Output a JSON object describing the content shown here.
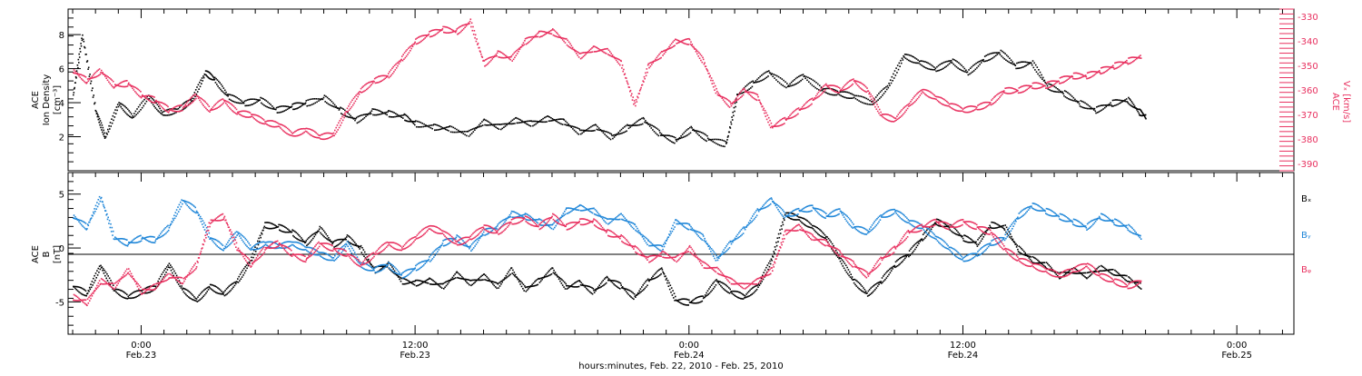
{
  "colors": {
    "black": "#000000",
    "red": "#e8305f",
    "blue": "#1f86d8"
  },
  "x_axis": {
    "ticks": [
      {
        "t": 0,
        "time": "0:00",
        "date": "Feb.23"
      },
      {
        "t": 12,
        "time": "12:00",
        "date": "Feb.23"
      },
      {
        "t": 24,
        "time": "0:00",
        "date": "Feb.24"
      },
      {
        "t": 36,
        "time": "12:00",
        "date": "Feb.24"
      },
      {
        "t": 48,
        "time": "0:00",
        "date": "Feb.25"
      }
    ],
    "label": "hours:minutes, Feb. 22, 2010 - Feb. 25, 2010"
  },
  "chart_data": [
    {
      "type": "scatter",
      "title": "",
      "ylabel_line1": "ACE",
      "ylabel_line2": "Ion Density",
      "ylabel_units": "[cm⁻³]",
      "y2label_line1": "ACE",
      "y2label_line2": "Vₓ [km/s]",
      "xlim_hours": [
        -3.2,
        50.5
      ],
      "ylim": [
        0,
        9.5
      ],
      "y2lim": [
        -393,
        -327
      ],
      "y_ticks": [
        2,
        4,
        6,
        8
      ],
      "y2_ticks": [
        -390,
        -380,
        -370,
        -360,
        -350,
        -340,
        -330
      ],
      "series": [
        {
          "color": "black",
          "points_x_hours": [
            -3.0,
            -2.6,
            -2.0,
            -1.6,
            -1.0,
            -0.4,
            0.3,
            0.9,
            1.6,
            2.2,
            2.8,
            3.2,
            3.8,
            4.5,
            5.2,
            5.9,
            6.6,
            7.2,
            8.0,
            8.7,
            9.4,
            10.1,
            10.8,
            11.5,
            12.0,
            12.8,
            13.5,
            14.3,
            15.0,
            15.7,
            16.4,
            17.1,
            17.8,
            18.5,
            19.2,
            19.9,
            20.6,
            21.3,
            22.0,
            22.7,
            23.4,
            24.1,
            24.8,
            25.6,
            26.1,
            26.8,
            27.5,
            28.3,
            29.0,
            29.8,
            30.5,
            31.2,
            32.0,
            32.7,
            33.4,
            34.1,
            34.8,
            35.5,
            36.2,
            36.9,
            37.6,
            38.3,
            39.0,
            39.7,
            40.4,
            41.1,
            41.8,
            42.5,
            43.2,
            43.7,
            44.0
          ],
          "points_y": [
            4.5,
            8.0,
            3.5,
            2.0,
            4.0,
            3.2,
            4.4,
            3.4,
            3.6,
            4.2,
            5.8,
            5.4,
            4.4,
            4.0,
            4.2,
            3.6,
            3.8,
            4.0,
            4.3,
            3.6,
            3.0,
            3.5,
            3.4,
            3.2,
            2.8,
            2.6,
            2.5,
            2.2,
            2.9,
            2.6,
            3.0,
            2.8,
            3.1,
            2.9,
            2.3,
            2.6,
            2.0,
            2.6,
            3.0,
            2.2,
            1.8,
            2.5,
            1.9,
            1.6,
            4.5,
            5.2,
            5.8,
            5.0,
            5.6,
            4.8,
            4.6,
            4.4,
            4.0,
            5.0,
            6.8,
            6.4,
            6.0,
            6.5,
            5.8,
            6.6,
            7.0,
            6.2,
            6.4,
            5.0,
            4.6,
            4.0,
            3.6,
            4.0,
            4.2,
            3.5,
            3.2
          ]
        },
        {
          "color": "red",
          "axis": "right",
          "points_x_hours": [
            -3.0,
            -2.4,
            -1.8,
            -1.2,
            -0.6,
            0.0,
            0.6,
            1.2,
            1.8,
            2.4,
            3.0,
            3.6,
            4.2,
            4.8,
            5.4,
            6.0,
            6.6,
            7.2,
            7.8,
            8.4,
            9.0,
            9.6,
            10.2,
            10.8,
            11.4,
            12.0,
            12.6,
            13.2,
            13.8,
            14.4,
            15.0,
            15.6,
            16.2,
            16.8,
            17.4,
            18.0,
            18.6,
            19.2,
            19.8,
            20.4,
            21.0,
            21.6,
            22.2,
            22.8,
            23.4,
            24.0,
            24.6,
            25.2,
            25.8,
            26.4,
            27.0,
            27.6,
            28.2,
            28.8,
            29.4,
            30.0,
            30.6,
            31.2,
            31.8,
            32.4,
            33.0,
            33.6,
            34.2,
            34.8,
            35.4,
            36.0,
            36.6,
            37.2,
            37.8,
            38.4,
            39.0,
            39.6,
            40.2,
            40.8,
            41.4,
            42.0,
            42.6,
            43.2,
            43.8
          ],
          "points_y": [
            -352,
            -356,
            -352,
            -358,
            -357,
            -362,
            -364,
            -368,
            -367,
            -362,
            -368,
            -364,
            -369,
            -370,
            -373,
            -374,
            -378,
            -376,
            -379,
            -378,
            -368,
            -360,
            -356,
            -354,
            -347,
            -340,
            -337,
            -335,
            -336,
            -332,
            -349,
            -345,
            -347,
            -340,
            -337,
            -336,
            -340,
            -346,
            -343,
            -344,
            -349,
            -366,
            -350,
            -345,
            -340,
            -340,
            -348,
            -361,
            -366,
            -360,
            -363,
            -375,
            -372,
            -368,
            -364,
            -358,
            -360,
            -356,
            -360,
            -370,
            -372,
            -366,
            -360,
            -363,
            -366,
            -368,
            -367,
            -365,
            -360,
            -360,
            -358,
            -358,
            -356,
            -354,
            -354,
            -352,
            -350,
            -348,
            -346
          ]
        }
      ]
    },
    {
      "type": "scatter",
      "title": "",
      "ylabel_line1": "ACE",
      "ylabel_line2": "B",
      "ylabel_units": "[nT]",
      "xlim_hours": [
        -3.2,
        50.5
      ],
      "ylim": [
        -8,
        7
      ],
      "y_ticks": [
        -5,
        0,
        5
      ],
      "series": [
        {
          "name": "Bₓ",
          "color": "black",
          "points_x_hours": [
            -3.0,
            -2.4,
            -1.8,
            -1.2,
            -0.6,
            0.0,
            0.6,
            1.2,
            1.8,
            2.4,
            3.0,
            3.6,
            4.2,
            4.8,
            5.4,
            6.0,
            6.6,
            7.2,
            7.8,
            8.4,
            9.0,
            9.6,
            10.2,
            10.8,
            11.4,
            12.0,
            12.6,
            13.2,
            13.8,
            14.4,
            15.0,
            15.6,
            16.2,
            16.8,
            17.4,
            18.0,
            18.6,
            19.2,
            19.8,
            20.4,
            21.0,
            21.6,
            22.2,
            22.8,
            23.4,
            24.0,
            24.6,
            25.2,
            25.8,
            26.4,
            27.0,
            27.6,
            28.2,
            28.8,
            29.4,
            30.0,
            30.6,
            31.2,
            31.8,
            32.4,
            33.0,
            33.6,
            34.2,
            34.8,
            35.4,
            36.0,
            36.6,
            37.2,
            37.8,
            38.4,
            39.0,
            39.6,
            40.2,
            40.8,
            41.4,
            42.0,
            42.6,
            43.2,
            43.8
          ],
          "points_y": [
            -3.5,
            -4.2,
            -1.6,
            -3.8,
            -4.5,
            -4.0,
            -3.6,
            -1.5,
            -3.8,
            -4.8,
            -3.5,
            -4.2,
            -3.0,
            -1.0,
            2.2,
            2.0,
            1.5,
            0.5,
            1.8,
            0.4,
            1.0,
            0.0,
            -2.0,
            -1.5,
            -3.0,
            -3.2,
            -3.0,
            -3.5,
            -2.4,
            -3.2,
            -2.6,
            -3.5,
            -2.0,
            -3.8,
            -3.0,
            -2.0,
            -3.6,
            -3.2,
            -4.0,
            -2.8,
            -3.5,
            -4.5,
            -3.0,
            -2.0,
            -4.8,
            -5.0,
            -4.6,
            -3.0,
            -4.0,
            -4.5,
            -3.5,
            -1.0,
            3.2,
            2.8,
            2.0,
            1.0,
            -1.0,
            -3.0,
            -4.2,
            -3.0,
            -1.5,
            -0.5,
            1.0,
            2.5,
            2.0,
            1.0,
            0.5,
            2.2,
            2.0,
            0.0,
            -1.0,
            -1.5,
            -2.5,
            -2.0,
            -2.5,
            -1.8,
            -2.2,
            -2.8,
            -3.5
          ]
        },
        {
          "name": "Bᵧ",
          "color": "blue",
          "points_x_hours": [
            -3.0,
            -2.4,
            -1.8,
            -1.2,
            -0.6,
            0.0,
            0.6,
            1.2,
            1.8,
            2.4,
            3.0,
            3.6,
            4.2,
            4.8,
            5.4,
            6.0,
            6.6,
            7.2,
            7.8,
            8.4,
            9.0,
            9.6,
            10.2,
            10.8,
            11.4,
            12.0,
            12.6,
            13.2,
            13.8,
            14.4,
            15.0,
            15.6,
            16.2,
            16.8,
            17.4,
            18.0,
            18.6,
            19.2,
            19.8,
            20.4,
            21.0,
            21.6,
            22.2,
            22.8,
            23.4,
            24.0,
            24.6,
            25.2,
            25.8,
            26.4,
            27.0,
            27.6,
            28.2,
            28.8,
            29.4,
            30.0,
            30.6,
            31.2,
            31.8,
            32.4,
            33.0,
            33.6,
            34.2,
            34.8,
            35.4,
            36.0,
            36.6,
            37.2,
            37.8,
            38.4,
            39.0,
            39.6,
            40.2,
            40.8,
            41.4,
            42.0,
            42.6,
            43.2,
            43.8
          ],
          "points_y": [
            3.0,
            2.0,
            4.8,
            1.0,
            0.5,
            1.0,
            0.8,
            2.0,
            4.5,
            3.5,
            1.0,
            0.0,
            1.5,
            0.0,
            0.5,
            0.2,
            0.5,
            0.0,
            -0.5,
            -1.0,
            0.5,
            -1.5,
            -2.0,
            -1.5,
            -2.5,
            -1.8,
            -1.0,
            0.5,
            1.0,
            0.0,
            1.5,
            2.0,
            3.2,
            3.0,
            2.5,
            2.0,
            3.5,
            3.8,
            3.5,
            2.5,
            3.0,
            2.0,
            0.5,
            0.0,
            2.5,
            2.0,
            1.0,
            -1.0,
            0.5,
            1.8,
            3.5,
            4.5,
            3.0,
            3.5,
            3.8,
            3.0,
            3.5,
            2.0,
            1.5,
            3.0,
            3.5,
            2.5,
            2.0,
            1.0,
            0.0,
            -1.0,
            -0.5,
            0.5,
            1.0,
            3.0,
            4.0,
            3.5,
            3.0,
            2.5,
            2.0,
            3.0,
            2.5,
            2.0,
            1.0
          ]
        },
        {
          "name": "Bᵩ",
          "color": "red",
          "points_x_hours": [
            -3.0,
            -2.4,
            -1.8,
            -1.2,
            -0.6,
            0.0,
            0.6,
            1.2,
            1.8,
            2.4,
            3.0,
            3.6,
            4.2,
            4.8,
            5.4,
            6.0,
            6.6,
            7.2,
            7.8,
            8.4,
            9.0,
            9.6,
            10.2,
            10.8,
            11.4,
            12.0,
            12.6,
            13.2,
            13.8,
            14.4,
            15.0,
            15.6,
            16.2,
            16.8,
            17.4,
            18.0,
            18.6,
            19.2,
            19.8,
            20.4,
            21.0,
            21.6,
            22.2,
            22.8,
            23.4,
            24.0,
            24.6,
            25.2,
            25.8,
            26.4,
            27.0,
            27.6,
            28.2,
            28.8,
            29.4,
            30.0,
            30.6,
            31.2,
            31.8,
            32.4,
            33.0,
            33.6,
            34.2,
            34.8,
            35.4,
            36.0,
            36.6,
            37.2,
            37.8,
            38.4,
            39.0,
            39.6,
            40.2,
            40.8,
            41.4,
            42.0,
            42.6,
            43.2,
            43.8
          ],
          "points_y": [
            -4.5,
            -5.0,
            -3.0,
            -3.5,
            -2.0,
            -4.0,
            -3.5,
            -2.5,
            -3.0,
            -1.5,
            2.5,
            3.0,
            0.0,
            -1.5,
            0.0,
            0.5,
            -0.5,
            -1.0,
            0.5,
            0.0,
            -0.5,
            -1.5,
            -0.5,
            0.5,
            0.0,
            1.0,
            2.0,
            1.5,
            0.5,
            1.0,
            2.0,
            1.5,
            2.5,
            2.8,
            2.0,
            3.0,
            2.0,
            2.5,
            2.5,
            1.5,
            1.0,
            0.0,
            -1.0,
            -0.5,
            -1.0,
            0.0,
            -1.5,
            -2.0,
            -3.0,
            -3.5,
            -3.0,
            -2.0,
            1.5,
            2.0,
            1.0,
            0.5,
            -0.5,
            -1.5,
            -2.5,
            -1.0,
            0.0,
            1.5,
            2.0,
            2.5,
            2.0,
            2.5,
            2.0,
            1.5,
            0.0,
            -1.0,
            -1.5,
            -2.0,
            -2.5,
            -2.0,
            -1.5,
            -2.5,
            -3.0,
            -3.5,
            -3.0
          ]
        }
      ]
    }
  ]
}
